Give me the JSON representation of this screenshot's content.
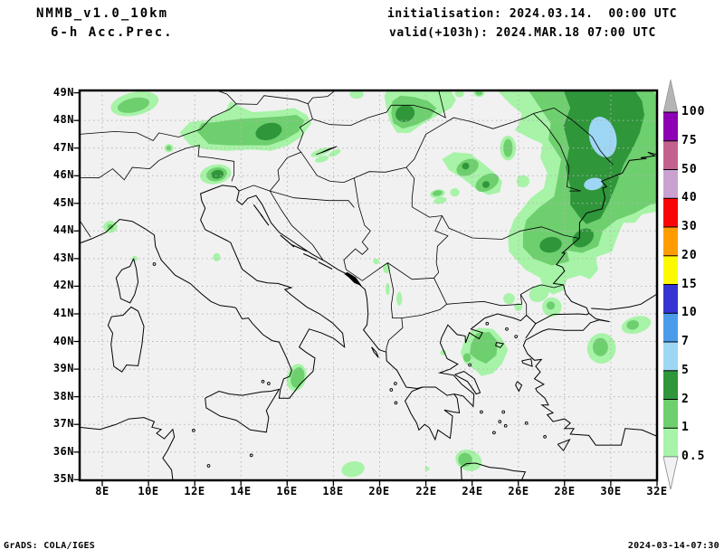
{
  "header": {
    "model": "NMMB_v1.0_10km",
    "product": "6-h Acc.Prec.",
    "init_line": "initialisation: 2024.03.14.  00:00 UTC",
    "valid_line": "valid(+103h): 2024.MAR.18 07:00 UTC"
  },
  "axes": {
    "lat_labels": [
      "49N",
      "48N",
      "47N",
      "46N",
      "45N",
      "44N",
      "43N",
      "42N",
      "41N",
      "40N",
      "39N",
      "38N",
      "37N",
      "36N",
      "35N"
    ],
    "lon_labels": [
      "8E",
      "10E",
      "12E",
      "14E",
      "16E",
      "18E",
      "20E",
      "22E",
      "24E",
      "26E",
      "28E",
      "30E",
      "32E"
    ]
  },
  "colorbar": {
    "boundary_labels": [
      "100",
      "75",
      "50",
      "40",
      "30",
      "20",
      "15",
      "10",
      "7",
      "5",
      "2",
      "1",
      "0.5"
    ],
    "segment_colors_top_to_bottom": [
      "#8e00b4",
      "#c4628f",
      "#c9a2d1",
      "#f90606",
      "#ff9d00",
      "#fdf900",
      "#3534d3",
      "#4a9ceb",
      "#9ed7f5",
      "#2f963a",
      "#6ecf6e",
      "#a7f3a7"
    ],
    "above_max_color": "#b4b4b4",
    "below_min_color": "#f2f2f2"
  },
  "footer": {
    "left": "GrADS: COLA/IGES",
    "right": "2024-03-14-07:30"
  },
  "chart_data": {
    "type": "filled_contour_map",
    "title": "NMMB_v1.0_10km 6-h Acc.Prec.",
    "initialisation": "2024.03.14. 00:00 UTC",
    "valid": "valid(+103h): 2024.MAR.18 07:00 UTC",
    "x": {
      "label": "longitude",
      "ticks": [
        "8E",
        "10E",
        "12E",
        "14E",
        "16E",
        "18E",
        "20E",
        "22E",
        "24E",
        "26E",
        "28E",
        "30E",
        "32E"
      ],
      "range_deg_east": [
        7,
        32
      ]
    },
    "y": {
      "label": "latitude",
      "ticks": [
        "49N",
        "48N",
        "47N",
        "46N",
        "45N",
        "44N",
        "43N",
        "42N",
        "41N",
        "40N",
        "39N",
        "38N",
        "37N",
        "36N",
        "35N"
      ],
      "range_deg_north": [
        35,
        49
      ]
    },
    "contour_levels": [
      0.5,
      1,
      2,
      5,
      7,
      10,
      15,
      20,
      30,
      40,
      50,
      75,
      100
    ],
    "level_colors_low_to_high": [
      "#a7f3a7",
      "#6ecf6e",
      "#2f963a",
      "#9ed7f5",
      "#4a9ceb",
      "#3534d3",
      "#fdf900",
      "#ff9d00",
      "#f90606",
      "#c9a2d1",
      "#c4628f",
      "#8e00b4"
    ],
    "grid": true,
    "legend_position": "right-colorbar",
    "max_shaded_category_on_map": "5-7",
    "shaded_features": [
      {
        "region": "E Romania / Moldova / W Black Sea coast",
        "lon": [
          27,
          32
        ],
        "lat": [
          42.5,
          49
        ],
        "category": "2-5 with 5-7 cores near 29.5E 47.3N and 29.2E 45.7N"
      },
      {
        "region": "NE Bulgaria (Dobruja)",
        "lon": [
          26.5,
          29.5
        ],
        "lat": [
          43,
          44.3
        ],
        "category": "2-5 cores in 1-2 band"
      },
      {
        "region": "Austria Alps band",
        "lon": [
          11.3,
          17
        ],
        "lat": [
          46.9,
          48.4
        ],
        "category": "1-2 with 2-5 core near 15.2E 47.6N"
      },
      {
        "region": "S Germany",
        "lon": [
          8.3,
          10.4
        ],
        "lat": [
          48.1,
          49
        ],
        "category": "1-2"
      },
      {
        "region": "NE Italy / Slovenia",
        "lon": [
          12.2,
          13.6
        ],
        "lat": [
          45.7,
          46.4
        ],
        "category": "2-5 core"
      },
      {
        "region": "E Slovakia / NE Hungary",
        "lon": [
          20.2,
          23.3
        ],
        "lat": [
          47.5,
          49
        ],
        "category": "1-2 with 2-5 core near 21.1E 48.3N"
      },
      {
        "region": "Transylvania diagonal band",
        "lon": [
          22.6,
          25.9
        ],
        "lat": [
          45.2,
          47.4
        ],
        "category": "0.5-2 with small 2-5 cores"
      },
      {
        "region": "North Aegean / Chalkidiki",
        "lon": [
          23.5,
          25.6
        ],
        "lat": [
          38.7,
          40.5
        ],
        "category": "1-2"
      },
      {
        "region": "Thrace / Marmara spots",
        "lon": [
          25.4,
          28
        ],
        "lat": [
          41,
          42.1
        ],
        "category": "0.5-1"
      },
      {
        "region": "NW Turkey",
        "lon": [
          29,
          30.2
        ],
        "lat": [
          39.2,
          40.3
        ],
        "category": "1-2"
      },
      {
        "region": "N Turkey",
        "lon": [
          30.5,
          31.8
        ],
        "lat": [
          40.3,
          40.9
        ],
        "category": "1-2"
      },
      {
        "region": "Calabria",
        "lon": [
          16,
          16.9
        ],
        "lat": [
          38.2,
          39.2
        ],
        "category": "1-2"
      },
      {
        "region": "Sea near Kythira / W Crete",
        "lon": [
          23.3,
          24.4
        ],
        "lat": [
          35.3,
          36.1
        ],
        "category": "1-2"
      },
      {
        "region": "Ionian Sea S of Italy",
        "lon": [
          18.3,
          19.4
        ],
        "lat": [
          35.1,
          35.7
        ],
        "category": "0.5-1"
      }
    ]
  }
}
